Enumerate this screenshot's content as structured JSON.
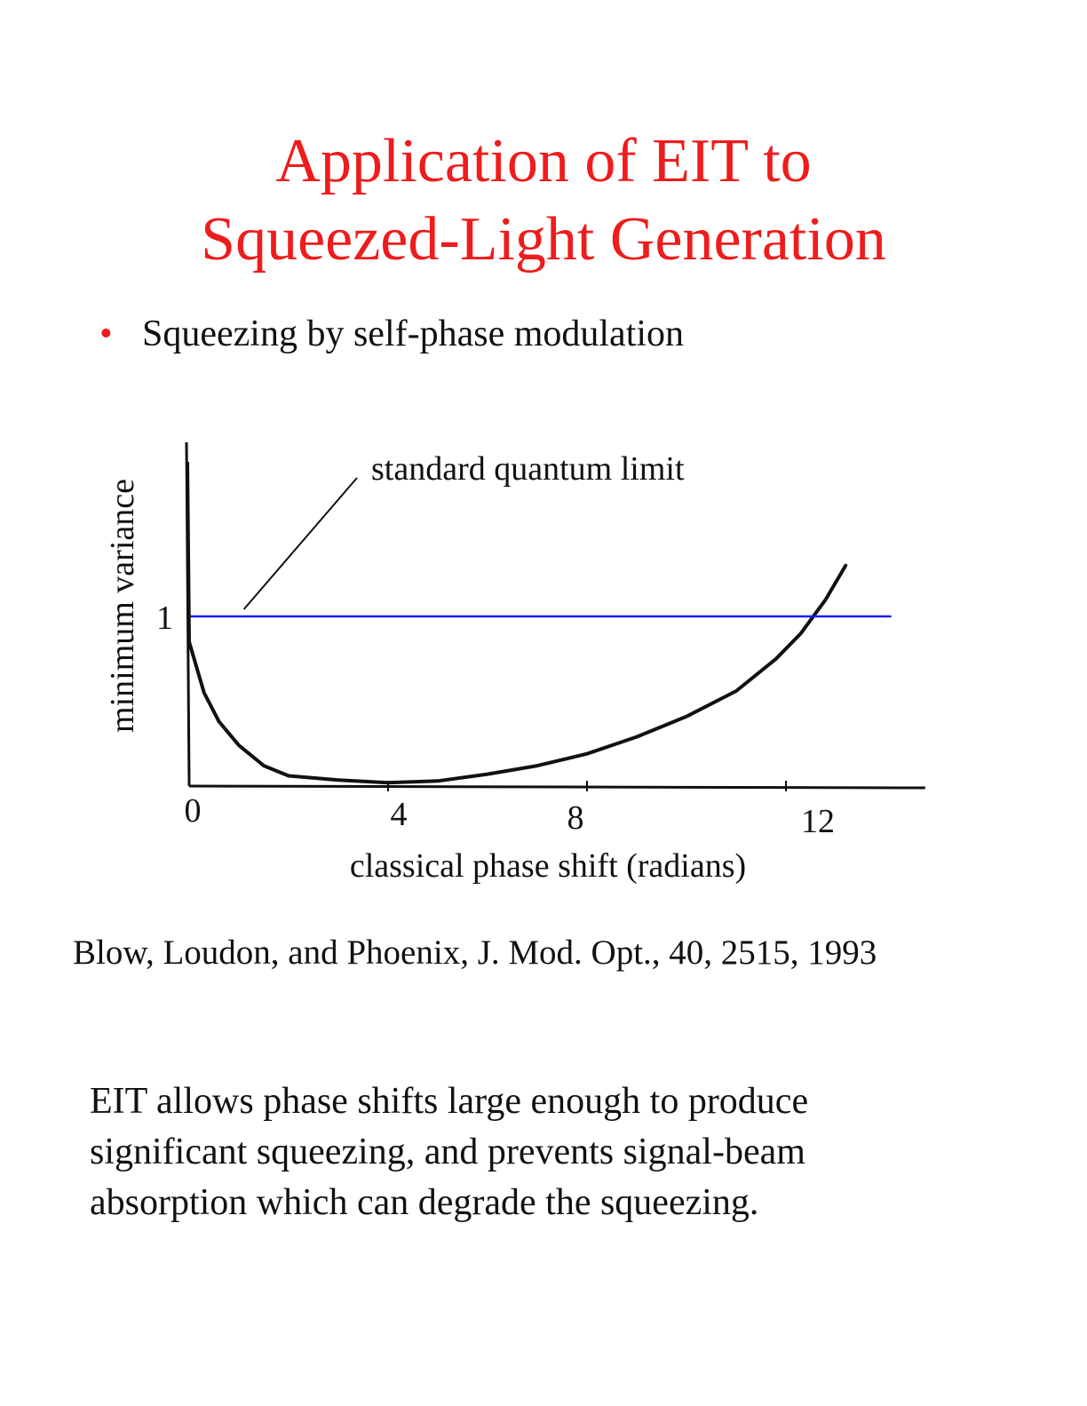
{
  "title": {
    "line1": "Application of  EIT to",
    "line2": "Squeezed-Light Generation"
  },
  "bullet": "Squeezing by self-phase modulation",
  "colors": {
    "title": "#ee1c1c",
    "bullet_dot": "#ee1c1c",
    "sql_line": "#1a1aff",
    "curve": "#111111"
  },
  "chart_data": {
    "type": "line",
    "xlabel": "classical phase shift (radians)",
    "ylabel": "minimum variance",
    "x_ticks": [
      0,
      4,
      8,
      12
    ],
    "y_ticks": [
      1
    ],
    "xlim": [
      0,
      14.8
    ],
    "ylim": [
      0,
      2.05
    ],
    "annotations": [
      {
        "text": "standard quantum limit",
        "x": 1.1,
        "y": 1.0
      }
    ],
    "series": [
      {
        "role": "minimum variance curve",
        "color": "#111111",
        "x": [
          0,
          0.1,
          0.3,
          0.6,
          1.0,
          1.5,
          2.0,
          3.0,
          4.0,
          5.0,
          6.0,
          7.0,
          8.0,
          9.0,
          10.0,
          11.0,
          11.8,
          12.3,
          12.8,
          13.2
        ],
        "y": [
          0.85,
          0.75,
          0.55,
          0.38,
          0.24,
          0.12,
          0.06,
          0.035,
          0.02,
          0.03,
          0.07,
          0.12,
          0.19,
          0.29,
          0.41,
          0.56,
          0.75,
          0.9,
          1.1,
          1.3
        ]
      },
      {
        "role": "standard quantum limit",
        "color": "#1a1aff",
        "x": [
          0,
          14.1
        ],
        "y": [
          1,
          1
        ]
      }
    ]
  },
  "citation": "Blow, Loudon, and Phoenix, J. Mod. Opt., 40, 2515, 1993",
  "body": {
    "line1": "EIT allows phase shifts large enough to produce",
    "line2": "significant squeezing, and prevents signal-beam",
    "line3": "absorption which can degrade the squeezing."
  }
}
